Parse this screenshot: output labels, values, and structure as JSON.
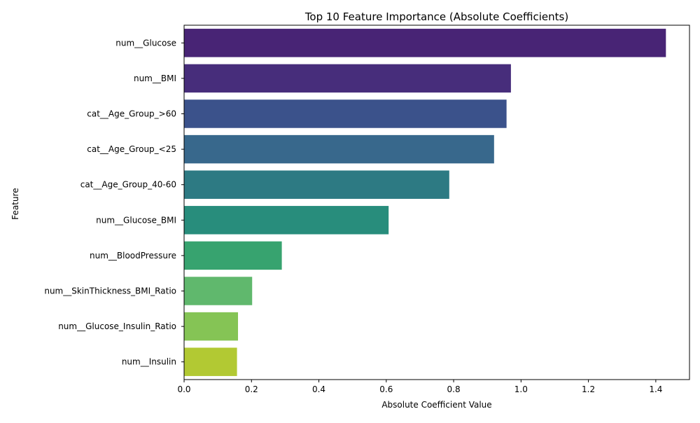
{
  "chart_data": {
    "type": "bar",
    "orientation": "horizontal",
    "title": "Top 10 Feature Importance (Absolute Coefficients)",
    "xlabel": "Absolute Coefficient Value",
    "ylabel": "Feature",
    "categories": [
      "num__Glucose",
      "num__BMI",
      "cat__Age_Group_>60",
      "cat__Age_Group_<25",
      "cat__Age_Group_40-60",
      "num__Glucose_BMI",
      "num__BloodPressure",
      "num__SkinThickness_BMI_Ratio",
      "num__Glucose_Insulin_Ratio",
      "num__Insulin"
    ],
    "values": [
      1.43,
      0.97,
      0.957,
      0.92,
      0.787,
      0.607,
      0.29,
      0.202,
      0.16,
      0.157
    ],
    "colors": [
      "#482475",
      "#472d7b",
      "#3b528b",
      "#38688c",
      "#2d7a83",
      "#288d7c",
      "#37a36f",
      "#60b86d",
      "#85c455",
      "#b2c933"
    ],
    "xlim": [
      0,
      1.5
    ],
    "xticks": [
      0.0,
      0.2,
      0.4,
      0.6,
      0.8,
      1.0,
      1.2,
      1.4
    ],
    "xtick_labels": [
      "0.0",
      "0.2",
      "0.4",
      "0.6",
      "0.8",
      "1.0",
      "1.2",
      "1.4"
    ],
    "grid": false,
    "legend": "none"
  }
}
